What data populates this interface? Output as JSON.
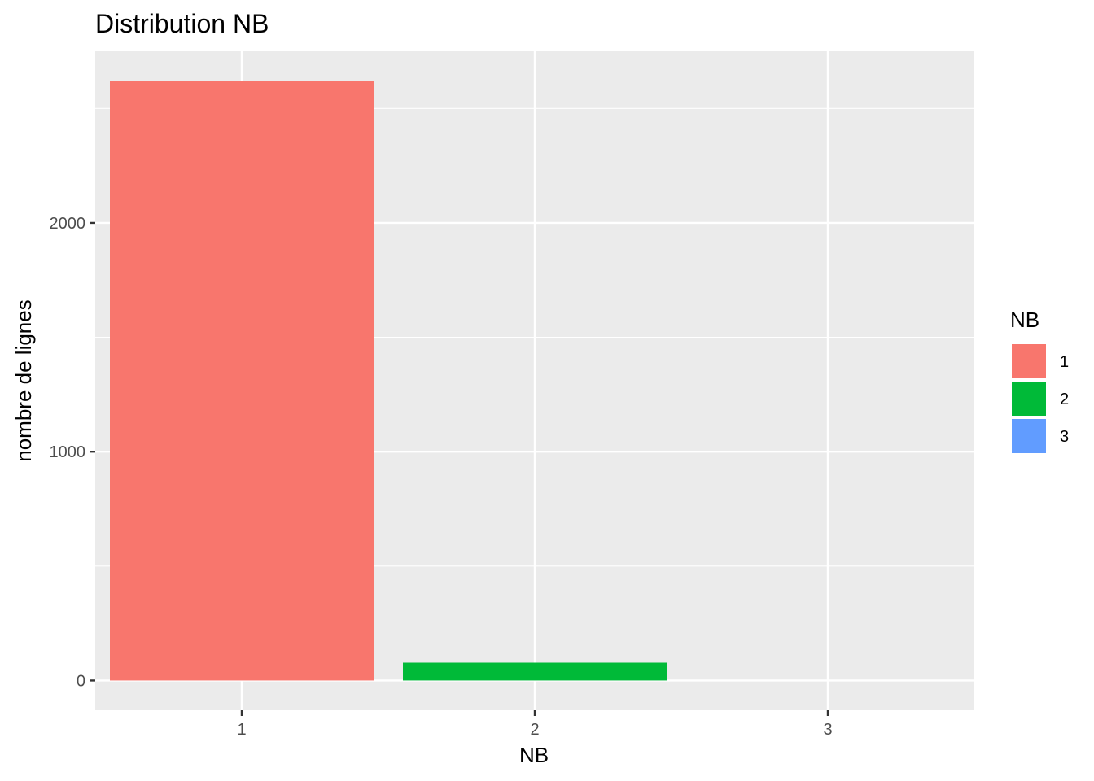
{
  "chart_data": {
    "type": "bar",
    "title": "Distribution NB",
    "xlabel": "NB",
    "ylabel": "nombre de lignes",
    "categories": [
      "1",
      "2",
      "3"
    ],
    "values": [
      2620,
      78,
      0
    ],
    "colors": [
      "#F8766D",
      "#00BA38",
      "#619CFF"
    ],
    "ylim": [
      -130,
      2750
    ],
    "yticks": [
      0,
      1000,
      2000
    ],
    "ytick_labels": [
      "0",
      "1000",
      "2000"
    ],
    "grid": true,
    "legend": {
      "title": "NB",
      "position": "right",
      "entries": [
        "1",
        "2",
        "3"
      ]
    }
  }
}
